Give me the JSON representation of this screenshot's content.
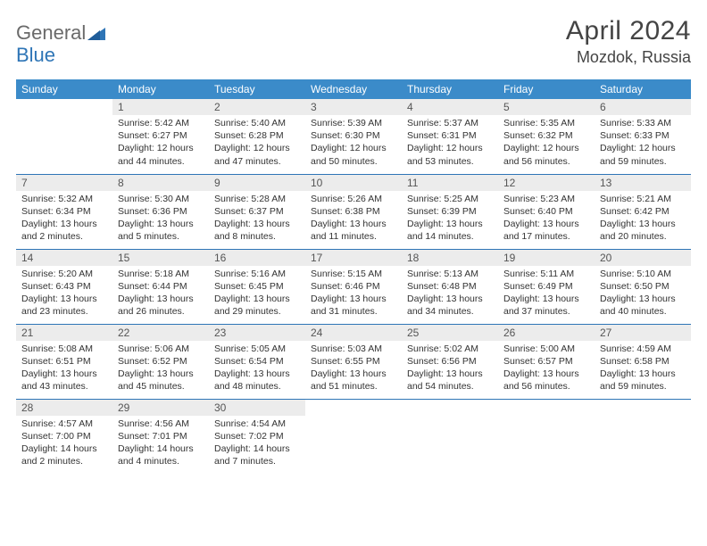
{
  "logo": {
    "part1": "General",
    "part2": "Blue"
  },
  "title": "April 2024",
  "location": "Mozdok, Russia",
  "header_bg": "#3b8bc9",
  "rule_color": "#2e75b6",
  "daynum_bg": "#ececec",
  "weekdays": [
    "Sunday",
    "Monday",
    "Tuesday",
    "Wednesday",
    "Thursday",
    "Friday",
    "Saturday"
  ],
  "weeks": [
    [
      null,
      {
        "n": "1",
        "sr": "5:42 AM",
        "ss": "6:27 PM",
        "dl": "12 hours and 44 minutes."
      },
      {
        "n": "2",
        "sr": "5:40 AM",
        "ss": "6:28 PM",
        "dl": "12 hours and 47 minutes."
      },
      {
        "n": "3",
        "sr": "5:39 AM",
        "ss": "6:30 PM",
        "dl": "12 hours and 50 minutes."
      },
      {
        "n": "4",
        "sr": "5:37 AM",
        "ss": "6:31 PM",
        "dl": "12 hours and 53 minutes."
      },
      {
        "n": "5",
        "sr": "5:35 AM",
        "ss": "6:32 PM",
        "dl": "12 hours and 56 minutes."
      },
      {
        "n": "6",
        "sr": "5:33 AM",
        "ss": "6:33 PM",
        "dl": "12 hours and 59 minutes."
      }
    ],
    [
      {
        "n": "7",
        "sr": "5:32 AM",
        "ss": "6:34 PM",
        "dl": "13 hours and 2 minutes."
      },
      {
        "n": "8",
        "sr": "5:30 AM",
        "ss": "6:36 PM",
        "dl": "13 hours and 5 minutes."
      },
      {
        "n": "9",
        "sr": "5:28 AM",
        "ss": "6:37 PM",
        "dl": "13 hours and 8 minutes."
      },
      {
        "n": "10",
        "sr": "5:26 AM",
        "ss": "6:38 PM",
        "dl": "13 hours and 11 minutes."
      },
      {
        "n": "11",
        "sr": "5:25 AM",
        "ss": "6:39 PM",
        "dl": "13 hours and 14 minutes."
      },
      {
        "n": "12",
        "sr": "5:23 AM",
        "ss": "6:40 PM",
        "dl": "13 hours and 17 minutes."
      },
      {
        "n": "13",
        "sr": "5:21 AM",
        "ss": "6:42 PM",
        "dl": "13 hours and 20 minutes."
      }
    ],
    [
      {
        "n": "14",
        "sr": "5:20 AM",
        "ss": "6:43 PM",
        "dl": "13 hours and 23 minutes."
      },
      {
        "n": "15",
        "sr": "5:18 AM",
        "ss": "6:44 PM",
        "dl": "13 hours and 26 minutes."
      },
      {
        "n": "16",
        "sr": "5:16 AM",
        "ss": "6:45 PM",
        "dl": "13 hours and 29 minutes."
      },
      {
        "n": "17",
        "sr": "5:15 AM",
        "ss": "6:46 PM",
        "dl": "13 hours and 31 minutes."
      },
      {
        "n": "18",
        "sr": "5:13 AM",
        "ss": "6:48 PM",
        "dl": "13 hours and 34 minutes."
      },
      {
        "n": "19",
        "sr": "5:11 AM",
        "ss": "6:49 PM",
        "dl": "13 hours and 37 minutes."
      },
      {
        "n": "20",
        "sr": "5:10 AM",
        "ss": "6:50 PM",
        "dl": "13 hours and 40 minutes."
      }
    ],
    [
      {
        "n": "21",
        "sr": "5:08 AM",
        "ss": "6:51 PM",
        "dl": "13 hours and 43 minutes."
      },
      {
        "n": "22",
        "sr": "5:06 AM",
        "ss": "6:52 PM",
        "dl": "13 hours and 45 minutes."
      },
      {
        "n": "23",
        "sr": "5:05 AM",
        "ss": "6:54 PM",
        "dl": "13 hours and 48 minutes."
      },
      {
        "n": "24",
        "sr": "5:03 AM",
        "ss": "6:55 PM",
        "dl": "13 hours and 51 minutes."
      },
      {
        "n": "25",
        "sr": "5:02 AM",
        "ss": "6:56 PM",
        "dl": "13 hours and 54 minutes."
      },
      {
        "n": "26",
        "sr": "5:00 AM",
        "ss": "6:57 PM",
        "dl": "13 hours and 56 minutes."
      },
      {
        "n": "27",
        "sr": "4:59 AM",
        "ss": "6:58 PM",
        "dl": "13 hours and 59 minutes."
      }
    ],
    [
      {
        "n": "28",
        "sr": "4:57 AM",
        "ss": "7:00 PM",
        "dl": "14 hours and 2 minutes."
      },
      {
        "n": "29",
        "sr": "4:56 AM",
        "ss": "7:01 PM",
        "dl": "14 hours and 4 minutes."
      },
      {
        "n": "30",
        "sr": "4:54 AM",
        "ss": "7:02 PM",
        "dl": "14 hours and 7 minutes."
      },
      null,
      null,
      null,
      null
    ]
  ],
  "labels": {
    "sunrise": "Sunrise:",
    "sunset": "Sunset:",
    "daylight": "Daylight:"
  }
}
